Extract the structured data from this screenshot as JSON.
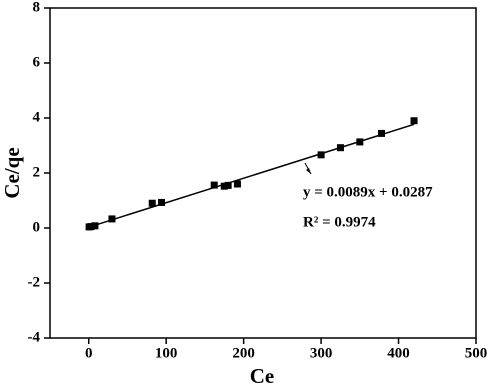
{
  "chart_data": {
    "type": "scatter",
    "x_label": "Ce",
    "y_label": "Ce/qe",
    "xlim": [
      -50,
      500
    ],
    "ylim": [
      -4,
      8
    ],
    "xticks": [
      0,
      100,
      200,
      300,
      400,
      500
    ],
    "yticks": [
      -4,
      -2,
      0,
      2,
      4,
      6,
      8
    ],
    "series": [
      {
        "color": "#000000",
        "x": [
          0.5,
          3,
          8,
          30,
          82,
          94,
          162,
          175,
          180,
          192,
          300,
          325,
          350,
          378,
          420
        ],
        "values": [
          0.04,
          0.05,
          0.08,
          0.33,
          0.9,
          0.93,
          1.56,
          1.52,
          1.55,
          1.6,
          2.66,
          2.92,
          3.13,
          3.44,
          3.9
        ]
      }
    ],
    "fit_line": {
      "x": [
        0,
        420
      ],
      "y": [
        0.03,
        3.77
      ]
    },
    "annotations": [
      "y   = 0.0089x + 0.0287",
      "R² = 0.9974"
    ]
  }
}
